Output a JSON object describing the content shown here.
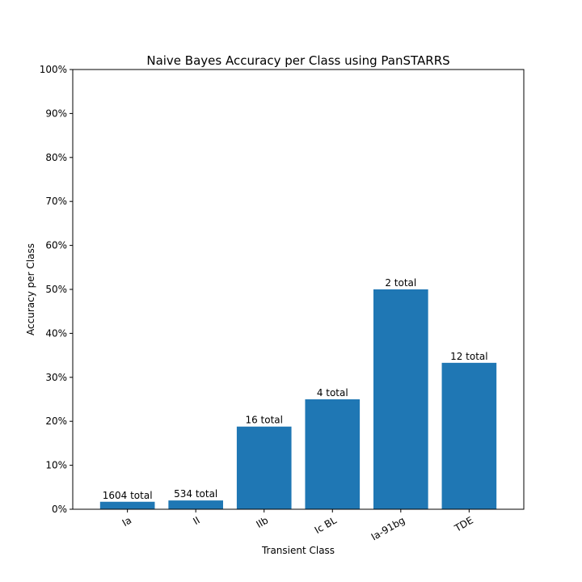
{
  "chart_data": {
    "type": "bar",
    "title": "Naive Bayes Accuracy per Class using PanSTARRS",
    "xlabel": "Transient Class",
    "ylabel": "Accuracy per Class",
    "categories": [
      "Ia",
      "II",
      "IIb",
      "Ic BL",
      "Ia-91bg",
      "TDE"
    ],
    "values": [
      1.7,
      2.0,
      18.8,
      25.0,
      50.0,
      33.3
    ],
    "data_labels": [
      "1604 total",
      "534 total",
      "16 total",
      "4 total",
      "2 total",
      "12 total"
    ],
    "ylim": [
      0,
      100
    ],
    "yticks": [
      0,
      10,
      20,
      30,
      40,
      50,
      60,
      70,
      80,
      90,
      100
    ],
    "ytick_labels": [
      "0%",
      "10%",
      "20%",
      "30%",
      "40%",
      "50%",
      "60%",
      "70%",
      "80%",
      "90%",
      "100%"
    ],
    "bar_color": "#1f77b4",
    "grid": false,
    "legend": "none",
    "xtick_rotation_deg": 30
  }
}
